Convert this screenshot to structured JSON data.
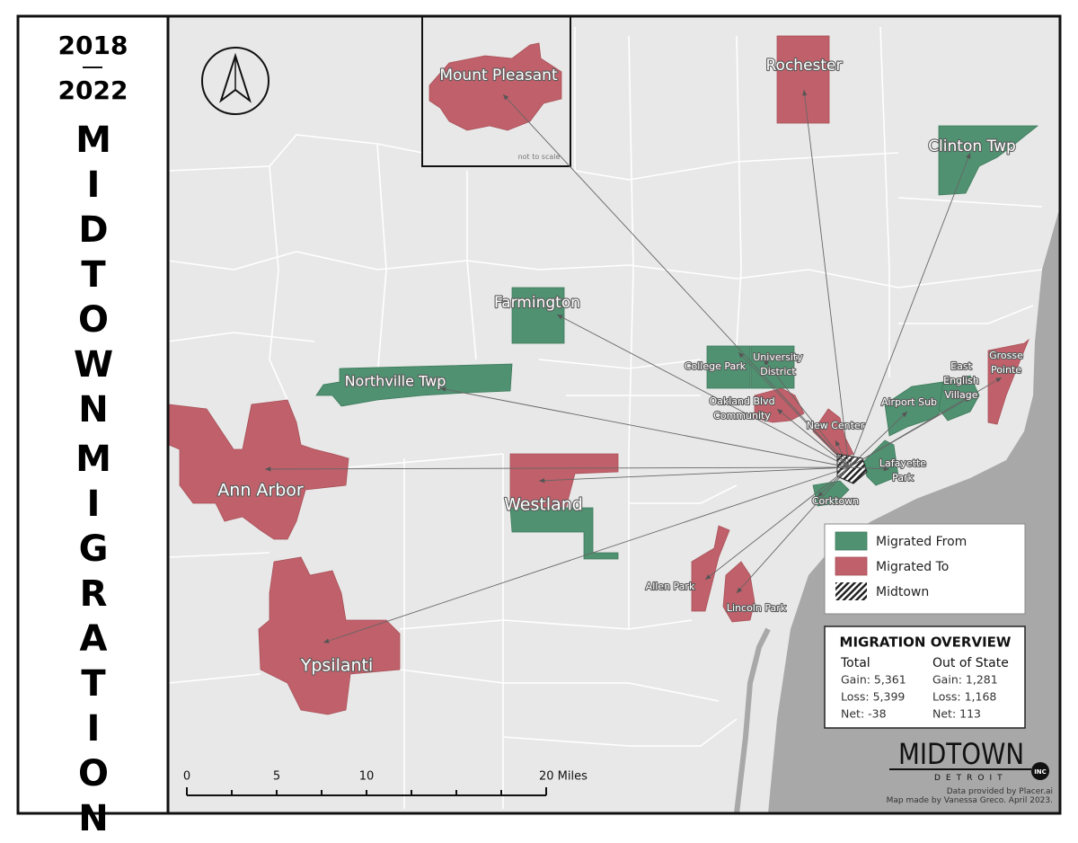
{
  "sidebar": {
    "years": [
      "2018",
      "2022"
    ],
    "title_words": [
      "MIDTOWN",
      "MIGRATION"
    ]
  },
  "map": {
    "inset_note": "not to scale",
    "places": [
      {
        "label_lines": [
          "Mount Pleasant"
        ]
      },
      {
        "label_lines": [
          "Rochester"
        ]
      },
      {
        "label_lines": [
          "Clinton Twp"
        ]
      },
      {
        "label_lines": [
          "Farmington"
        ]
      },
      {
        "label_lines": [
          "Northville Twp"
        ]
      },
      {
        "label_lines": [
          "College Park"
        ]
      },
      {
        "label_lines": [
          "University",
          "District"
        ]
      },
      {
        "label_lines": [
          "Oakland Blvd",
          "Community"
        ]
      },
      {
        "label_lines": [
          "New Center"
        ]
      },
      {
        "label_lines": [
          "Airport Sub"
        ]
      },
      {
        "label_lines": [
          "East",
          "English",
          "Village"
        ]
      },
      {
        "label_lines": [
          "Grosse",
          "Pointe"
        ]
      },
      {
        "label_lines": [
          "Lafayette",
          "Park"
        ]
      },
      {
        "label_lines": [
          "Corktown"
        ]
      },
      {
        "label_lines": [
          "Ann Arbor"
        ]
      },
      {
        "label_lines": [
          "Westland"
        ]
      },
      {
        "label_lines": [
          "Ypsilanti"
        ]
      },
      {
        "label_lines": [
          "Allen Park"
        ]
      },
      {
        "label_lines": [
          "Lincoln Park"
        ]
      }
    ]
  },
  "legend": {
    "items": [
      {
        "label": "Migrated From"
      },
      {
        "label": "Migrated To"
      },
      {
        "label": "Midtown"
      }
    ]
  },
  "overview": {
    "title": "MIGRATION OVERVIEW",
    "columns": [
      {
        "heading": "Total",
        "lines": [
          "Gain: 5,361",
          "Loss: 5,399",
          "Net: -38"
        ]
      },
      {
        "heading": "Out of State",
        "lines": [
          "Gain: 1,281",
          "Loss: 1,168",
          "Net: 113"
        ]
      }
    ]
  },
  "scale_bar": {
    "labels": [
      "0",
      "5",
      "10",
      "20 Miles"
    ]
  },
  "logo": {
    "name": "MIDTOWN",
    "city": "DETROIT",
    "suffix": "INC"
  },
  "credits": [
    "Data provided by Placer.ai",
    "Map made by Vanessa Greco. April 2023."
  ]
}
